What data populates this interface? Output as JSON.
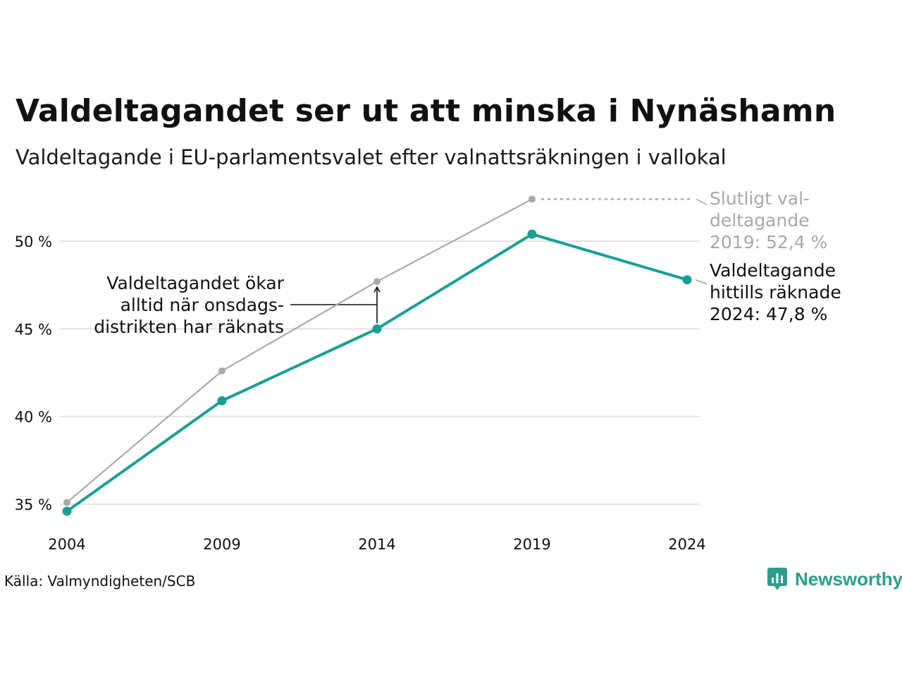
{
  "title": "Valdeltagandet ser ut att minska i Nynäshamn",
  "subtitle": "Valdeltagande i EU-parlamentsvalet efter valnattsräkningen i vallokal",
  "source": "Källa: Valmyndigheten/SCB",
  "logo_text": "Newsworthy",
  "colors": {
    "primary": "#16a096",
    "secondary": "#aaaaaa",
    "grid": "#e2e2e2",
    "logo": "#2a9d8f"
  },
  "chart_data": {
    "type": "line",
    "x": [
      "2004",
      "2009",
      "2014",
      "2019",
      "2024"
    ],
    "ylim": [
      34,
      53.5
    ],
    "yticks": [
      35,
      40,
      45,
      50
    ],
    "ytick_labels": [
      "35 %",
      "40 %",
      "45 %",
      "50 %"
    ],
    "grid": true,
    "series": [
      {
        "key": "counted",
        "color": "#16a096",
        "values": [
          34.6,
          40.9,
          45.0,
          50.4,
          47.8
        ]
      },
      {
        "key": "final",
        "color": "#aaaaaa",
        "values": [
          35.1,
          42.6,
          47.7,
          52.4,
          null
        ]
      }
    ],
    "annotations": {
      "final_2019": [
        "Slutligt val-",
        "deltagande",
        "2019: 52,4 %"
      ],
      "counted_2024": [
        "Valdeltagande",
        "hittills räknade",
        "2024: 47,8 %"
      ],
      "wednesday_note": [
        "Valdeltagandet ökar",
        "alltid när onsdags-",
        "distrikten har räknats"
      ]
    }
  }
}
